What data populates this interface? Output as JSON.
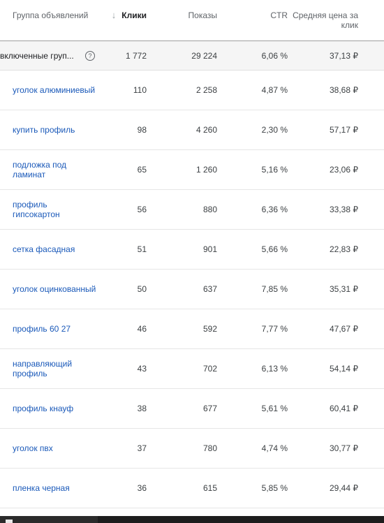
{
  "header": {
    "group": "Группа объявлений",
    "clicks": "Клики",
    "impressions": "Показы",
    "ctr": "CTR",
    "avg_cpc": "Средняя цена за клик",
    "sort_icon": "↓"
  },
  "total": {
    "label": "включенные груп...",
    "help_icon": "?",
    "clicks": "1 772",
    "impressions": "29 224",
    "ctr": "6,06 %",
    "avg_cpc": "37,13 ₽"
  },
  "rows": [
    {
      "name": "уголок алюминиевый",
      "clicks": "110",
      "impressions": "2 258",
      "ctr": "4,87 %",
      "avg_cpc": "38,68 ₽"
    },
    {
      "name": "купить профиль",
      "clicks": "98",
      "impressions": "4 260",
      "ctr": "2,30 %",
      "avg_cpc": "57,17 ₽"
    },
    {
      "name": "подложка под ламинат",
      "clicks": "65",
      "impressions": "1 260",
      "ctr": "5,16 %",
      "avg_cpc": "23,06 ₽"
    },
    {
      "name": "профиль гипсокартон",
      "clicks": "56",
      "impressions": "880",
      "ctr": "6,36 %",
      "avg_cpc": "33,38 ₽"
    },
    {
      "name": "сетка фасадная",
      "clicks": "51",
      "impressions": "901",
      "ctr": "5,66 %",
      "avg_cpc": "22,83 ₽"
    },
    {
      "name": "уголок оцинкованный",
      "clicks": "50",
      "impressions": "637",
      "ctr": "7,85 %",
      "avg_cpc": "35,31 ₽"
    },
    {
      "name": "профиль 60 27",
      "clicks": "46",
      "impressions": "592",
      "ctr": "7,77 %",
      "avg_cpc": "47,67 ₽"
    },
    {
      "name": "направляющий профиль",
      "clicks": "43",
      "impressions": "702",
      "ctr": "6,13 %",
      "avg_cpc": "54,14 ₽"
    },
    {
      "name": "профиль кнауф",
      "clicks": "38",
      "impressions": "677",
      "ctr": "5,61 %",
      "avg_cpc": "60,41 ₽"
    },
    {
      "name": "уголок пвх",
      "clicks": "37",
      "impressions": "780",
      "ctr": "4,74 %",
      "avg_cpc": "30,77 ₽"
    },
    {
      "name": "пленка черная",
      "clicks": "36",
      "impressions": "615",
      "ctr": "5,85 %",
      "avg_cpc": "29,44 ₽"
    }
  ]
}
